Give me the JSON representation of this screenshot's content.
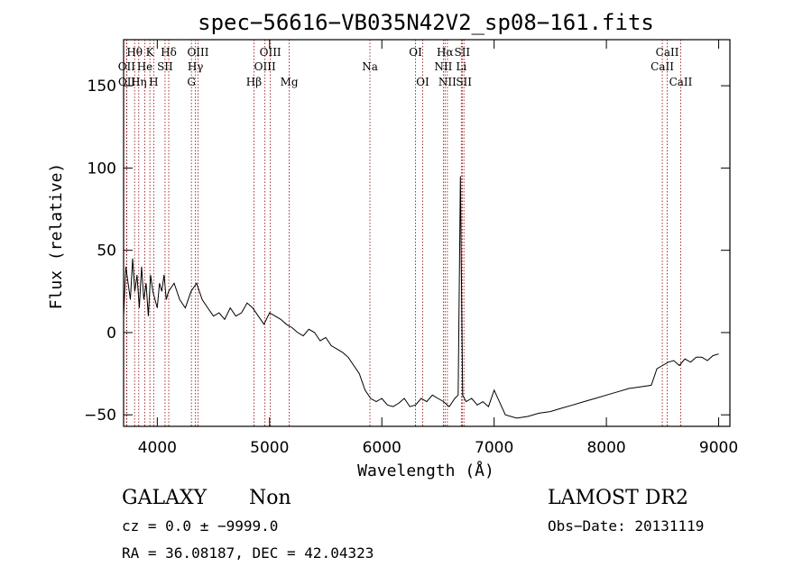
{
  "chart_data": {
    "type": "line",
    "title": "spec−56616−VB035N42V2_sp08−161.fits",
    "xlabel": "Wavelength (Å)",
    "ylabel": "Flux (relative)",
    "xlim": [
      3700,
      9100
    ],
    "ylim": [
      -57,
      178
    ],
    "xticks": [
      4000,
      5000,
      6000,
      7000,
      8000,
      9000
    ],
    "yticks": [
      -50,
      0,
      50,
      100,
      150
    ],
    "xtick_labels": [
      "4000",
      "5000",
      "6000",
      "7000",
      "8000",
      "9000"
    ],
    "ytick_labels": [
      "−50",
      "0",
      "50",
      "100",
      "150"
    ],
    "grid": false,
    "line_color": "#000000",
    "marker_color": "#8b0000",
    "series": [
      {
        "x": [
          3700,
          3720,
          3740,
          3760,
          3780,
          3800,
          3820,
          3840,
          3860,
          3880,
          3900,
          3920,
          3940,
          3960,
          3980,
          4000,
          4020,
          4040,
          4060,
          4080,
          4100,
          4150,
          4200,
          4250,
          4300,
          4350,
          4400,
          4450,
          4500,
          4550,
          4600,
          4650,
          4700,
          4750,
          4800,
          4850,
          4900,
          4950,
          5000,
          5050,
          5100,
          5150,
          5200,
          5250,
          5300,
          5350,
          5400,
          5450,
          5500,
          5550,
          5600,
          5650,
          5700,
          5750,
          5800,
          5850,
          5900,
          5950,
          6000,
          6050,
          6100,
          6150,
          6200,
          6250,
          6300,
          6350,
          6400,
          6450,
          6500,
          6550,
          6600,
          6650,
          6680,
          6700,
          6720,
          6750,
          6800,
          6850,
          6900,
          6950,
          7000,
          7100,
          7200,
          7300,
          7400,
          7500,
          7600,
          7700,
          7800,
          7900,
          8000,
          8100,
          8200,
          8300,
          8400,
          8450,
          8500,
          8550,
          8600,
          8650,
          8700,
          8750,
          8800,
          8850,
          8900,
          8950,
          9000
        ],
        "y": [
          10,
          40,
          30,
          20,
          45,
          25,
          35,
          15,
          40,
          20,
          30,
          10,
          35,
          25,
          20,
          15,
          30,
          25,
          35,
          20,
          25,
          30,
          20,
          15,
          25,
          30,
          20,
          15,
          10,
          12,
          8,
          15,
          10,
          12,
          18,
          15,
          10,
          5,
          12,
          10,
          8,
          5,
          3,
          0,
          -2,
          2,
          0,
          -5,
          -3,
          -8,
          -10,
          -12,
          -15,
          -20,
          -25,
          -35,
          -40,
          -42,
          -40,
          -44,
          -45,
          -43,
          -40,
          -45,
          -44,
          -40,
          -42,
          -38,
          -40,
          -42,
          -45,
          -40,
          -38,
          95,
          -38,
          -42,
          -40,
          -44,
          -42,
          -45,
          -35,
          -50,
          -52,
          -51,
          -49,
          -48,
          -46,
          -44,
          -42,
          -40,
          -38,
          -36,
          -34,
          -33,
          -32,
          -22,
          -20,
          -18,
          -17,
          -20,
          -16,
          -18,
          -15,
          -15,
          -17,
          -14,
          -13
        ]
      }
    ],
    "line_markers": [
      {
        "name": "Hθ",
        "x": 3798,
        "row": 1
      },
      {
        "name": "OII",
        "x": 3727,
        "row": 2
      },
      {
        "name": "OII",
        "x": 3729,
        "row": 3
      },
      {
        "name": "He",
        "x": 3889,
        "row": 2
      },
      {
        "name": "Hη",
        "x": 3835,
        "row": 3
      },
      {
        "name": "K",
        "x": 3934,
        "row": 1
      },
      {
        "name": "H",
        "x": 3968,
        "row": 3
      },
      {
        "name": "SII",
        "x": 4069,
        "row": 2
      },
      {
        "name": "Hδ",
        "x": 4102,
        "row": 1
      },
      {
        "name": "OIII",
        "x": 4363,
        "row": 1
      },
      {
        "name": "Hγ",
        "x": 4340,
        "row": 2
      },
      {
        "name": "G",
        "x": 4304,
        "row": 3
      },
      {
        "name": "Hβ",
        "x": 4861,
        "row": 3
      },
      {
        "name": "OIII",
        "x": 5007,
        "row": 1
      },
      {
        "name": "OIII",
        "x": 4959,
        "row": 2
      },
      {
        "name": "Mg",
        "x": 5175,
        "row": 3
      },
      {
        "name": "Na",
        "x": 5894,
        "row": 2
      },
      {
        "name": "OI",
        "x": 6300,
        "row": 1
      },
      {
        "name": "OI",
        "x": 6364,
        "row": 3
      },
      {
        "name": "Hα",
        "x": 6563,
        "row": 1
      },
      {
        "name": "NII",
        "x": 6548,
        "row": 2
      },
      {
        "name": "NII",
        "x": 6584,
        "row": 3
      },
      {
        "name": "SII",
        "x": 6716,
        "row": 1
      },
      {
        "name": "SII",
        "x": 6731,
        "row": 3
      },
      {
        "name": "Li",
        "x": 6708,
        "row": 2
      },
      {
        "name": "CaII",
        "x": 8542,
        "row": 1
      },
      {
        "name": "CaII",
        "x": 8498,
        "row": 2
      },
      {
        "name": "CaII",
        "x": 8662,
        "row": 3
      }
    ]
  },
  "footer": {
    "classification": "GALAXY",
    "subclass": "Non",
    "survey": "LAMOST DR2",
    "cz": "cz = 0.0 ± −9999.0",
    "obs_date": "Obs−Date: 20131119",
    "coords": "RA =  36.08187, DEC =  42.04323"
  }
}
